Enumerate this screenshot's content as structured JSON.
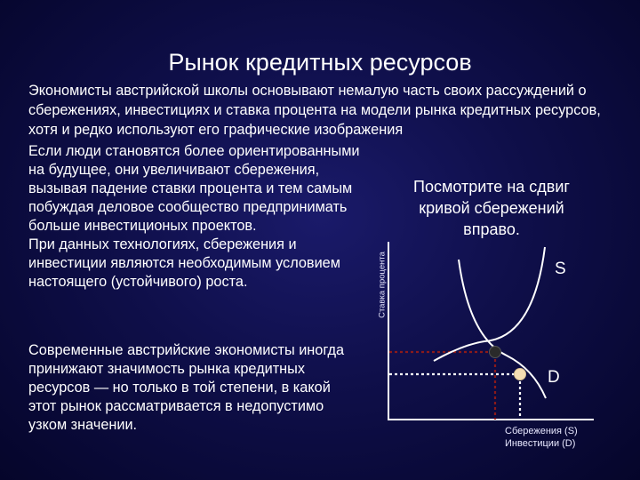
{
  "slide": {
    "title": "Рынок кредитных ресурсов",
    "intro": "Экономисты австрийской школы основывают немалую часть своих рассуждений о сбережениях, инвестициях и ставка процента на модели рынка кредитных ресурсов, хотя и редко используют его графические изображения",
    "paragraph1": "Если люди становятся более ориентированными на будущее, они увеличивают сбережения, вызывая падение ставки процента и тем самым побуждая деловое сообщество предпринимать больше инвестиционых проектов.\nПри данных технологиях, сбережения и инвестиции являются необходимым условием настоящего (устойчивого) роста.",
    "paragraph2": "Современные австрийские экономисты иногда принижают значимость рынка кредитных ресурсов — но только в той степени, в какой этот рынок рассматривается в недопустимо узком значении.",
    "note": "Посмотрите на сдвиг кривой сбережений вправо."
  },
  "colors": {
    "background": "#10104e",
    "text": "#ffffff",
    "curve": "#ffffff",
    "dot_dark": "#2a2a2a",
    "dot_light": "#f5deb3",
    "dashed_dark": "#8b1a1a",
    "dashed_light": "#ffffff"
  },
  "chart_data": {
    "type": "line",
    "ylabel": "Ставка процента",
    "xlabel_lines": [
      "Сбережения (S)",
      "Инвестиции (D)"
    ],
    "series": [
      {
        "name": "S",
        "label": "S"
      },
      {
        "name": "D",
        "label": "D"
      }
    ],
    "points": [
      {
        "name": "equilibrium",
        "style": "dark"
      },
      {
        "name": "new-equilibrium",
        "style": "light"
      }
    ]
  }
}
